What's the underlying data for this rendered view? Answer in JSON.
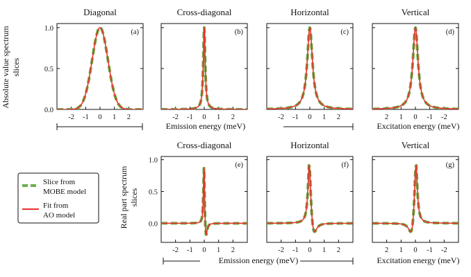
{
  "figure": {
    "ylabel_top": [
      "Absolute value spectrum",
      "slices"
    ],
    "ylabel_bottom": [
      "Real part spectrum",
      "slices"
    ],
    "xlabel_emission_top": "Emission energy (meV)",
    "xlabel_excitation_top": "Excitation energy (meV)",
    "xlabel_emission_bottom": "Emission energy (meV)",
    "xlabel_excitation_bottom": "Excitation energy (meV)"
  },
  "legend": {
    "items": [
      {
        "label_lines": [
          "Slice from",
          "MOBE model"
        ],
        "color": "#6ab04c",
        "style": "dashed"
      },
      {
        "label_lines": [
          "Fit from",
          "AO model"
        ],
        "color": "#e8302a",
        "style": "solid"
      }
    ]
  },
  "colors": {
    "mobe": "#6ab04c",
    "ao": "#e8302a",
    "axis": "#111111"
  },
  "chart_data": [
    {
      "id": "a",
      "type": "line",
      "title": "Diagonal",
      "panel_label": "(a)",
      "xlim": [
        -3,
        3
      ],
      "ylim": [
        0,
        1.05
      ],
      "xticks": [
        -2,
        -1,
        0,
        1,
        2
      ],
      "xticklabels": [
        "-2",
        "-1",
        "0",
        "1",
        "2"
      ],
      "yticks": [
        0,
        0.5,
        1.0
      ],
      "yticklabels": [
        "0.0",
        "0.5",
        "1.0"
      ],
      "reversed_x": false,
      "series": [
        {
          "name": "Slice from MOBE model",
          "shape": "gauss",
          "width": 0.55,
          "amplitude": 1.0
        },
        {
          "name": "Fit from AO model",
          "shape": "gauss",
          "width": 0.55,
          "amplitude": 1.0
        }
      ]
    },
    {
      "id": "b",
      "type": "line",
      "title": "Cross-diagonal",
      "panel_label": "(b)",
      "xlim": [
        -3,
        3
      ],
      "ylim": [
        0,
        1.05
      ],
      "xticks": [
        -2,
        -1,
        0,
        1,
        2
      ],
      "xticklabels": [
        "-2",
        "-1",
        "0",
        "1",
        "2"
      ],
      "yticks": [
        0,
        0.5,
        1.0
      ],
      "yticklabels": [],
      "reversed_x": false,
      "series": [
        {
          "name": "Slice from MOBE model",
          "shape": "lorentz",
          "width": 0.08,
          "amplitude": 1.0
        },
        {
          "name": "Fit from AO model",
          "shape": "lorentz",
          "width": 0.08,
          "amplitude": 1.0
        }
      ]
    },
    {
      "id": "c",
      "type": "line",
      "title": "Horizontal",
      "panel_label": "(c)",
      "xlim": [
        -3,
        3
      ],
      "ylim": [
        0,
        1.05
      ],
      "xticks": [
        -2,
        -1,
        0,
        1,
        2
      ],
      "xticklabels": [
        "-2",
        "-1",
        "0",
        "1",
        "2"
      ],
      "yticks": [
        0,
        0.5,
        1.0
      ],
      "yticklabels": [],
      "reversed_x": false,
      "series": [
        {
          "name": "Slice from MOBE model",
          "shape": "lorentz",
          "width": 0.22,
          "amplitude": 1.0
        },
        {
          "name": "Fit from AO model",
          "shape": "lorentz",
          "width": 0.22,
          "amplitude": 1.0
        }
      ]
    },
    {
      "id": "d",
      "type": "line",
      "title": "Vertical",
      "panel_label": "(d)",
      "xlim": [
        -3,
        3
      ],
      "ylim": [
        0,
        1.05
      ],
      "xticks": [
        2,
        1,
        0,
        -1,
        -2
      ],
      "xticklabels": [
        "2",
        "1",
        "0",
        "-1",
        "-2"
      ],
      "yticks": [
        0,
        0.5,
        1.0
      ],
      "yticklabels": [],
      "reversed_x": true,
      "series": [
        {
          "name": "Slice from MOBE model",
          "shape": "lorentz",
          "width": 0.22,
          "amplitude": 1.0
        },
        {
          "name": "Fit from AO model",
          "shape": "lorentz",
          "width": 0.22,
          "amplitude": 1.0
        }
      ]
    },
    {
      "id": "e",
      "type": "line",
      "title": "Cross-diagonal",
      "panel_label": "(e)",
      "xlim": [
        -3,
        3
      ],
      "ylim": [
        -0.3,
        1.05
      ],
      "xticks": [
        -2,
        -1,
        0,
        1,
        2
      ],
      "xticklabels": [
        "-2",
        "-1",
        "0",
        "1",
        "2"
      ],
      "yticks": [
        0,
        0.5,
        1.0
      ],
      "yticklabels": [
        "0.0",
        "0.5",
        "1.0"
      ],
      "reversed_x": false,
      "series": [
        {
          "name": "Slice from MOBE model",
          "shape": "dispersive",
          "width": 0.05,
          "amplitude": 1.0,
          "dip": -0.3
        },
        {
          "name": "Fit from AO model",
          "shape": "dispersive",
          "width": 0.05,
          "amplitude": 1.0,
          "dip": -0.3
        }
      ]
    },
    {
      "id": "f",
      "type": "line",
      "title": "Horizontal",
      "panel_label": "(f)",
      "xlim": [
        -3,
        3
      ],
      "ylim": [
        -0.3,
        1.05
      ],
      "xticks": [
        -2,
        -1,
        0,
        1,
        2
      ],
      "xticklabels": [
        "-2",
        "-1",
        "0",
        "1",
        "2"
      ],
      "yticks": [
        0,
        0.5,
        1.0
      ],
      "yticklabels": [],
      "reversed_x": false,
      "series": [
        {
          "name": "Slice from MOBE model",
          "shape": "dispersive",
          "width": 0.12,
          "amplitude": 1.0,
          "dip": -0.25
        },
        {
          "name": "Fit from AO model",
          "shape": "dispersive",
          "width": 0.12,
          "amplitude": 1.0,
          "dip": -0.25
        }
      ]
    },
    {
      "id": "g",
      "type": "line",
      "title": "Vertical",
      "panel_label": "(g)",
      "xlim": [
        -3,
        3
      ],
      "ylim": [
        -0.3,
        1.05
      ],
      "xticks": [
        2,
        1,
        0,
        -1,
        -2
      ],
      "xticklabels": [
        "2",
        "1",
        "0",
        "-1",
        "-2"
      ],
      "yticks": [
        0,
        0.5,
        1.0
      ],
      "yticklabels": [],
      "reversed_x": true,
      "series": [
        {
          "name": "Slice from MOBE model",
          "shape": "dispersive",
          "width": 0.12,
          "amplitude": 1.0,
          "dip": -0.25
        },
        {
          "name": "Fit from AO model",
          "shape": "dispersive",
          "width": 0.12,
          "amplitude": 1.0,
          "dip": -0.25
        }
      ]
    }
  ]
}
